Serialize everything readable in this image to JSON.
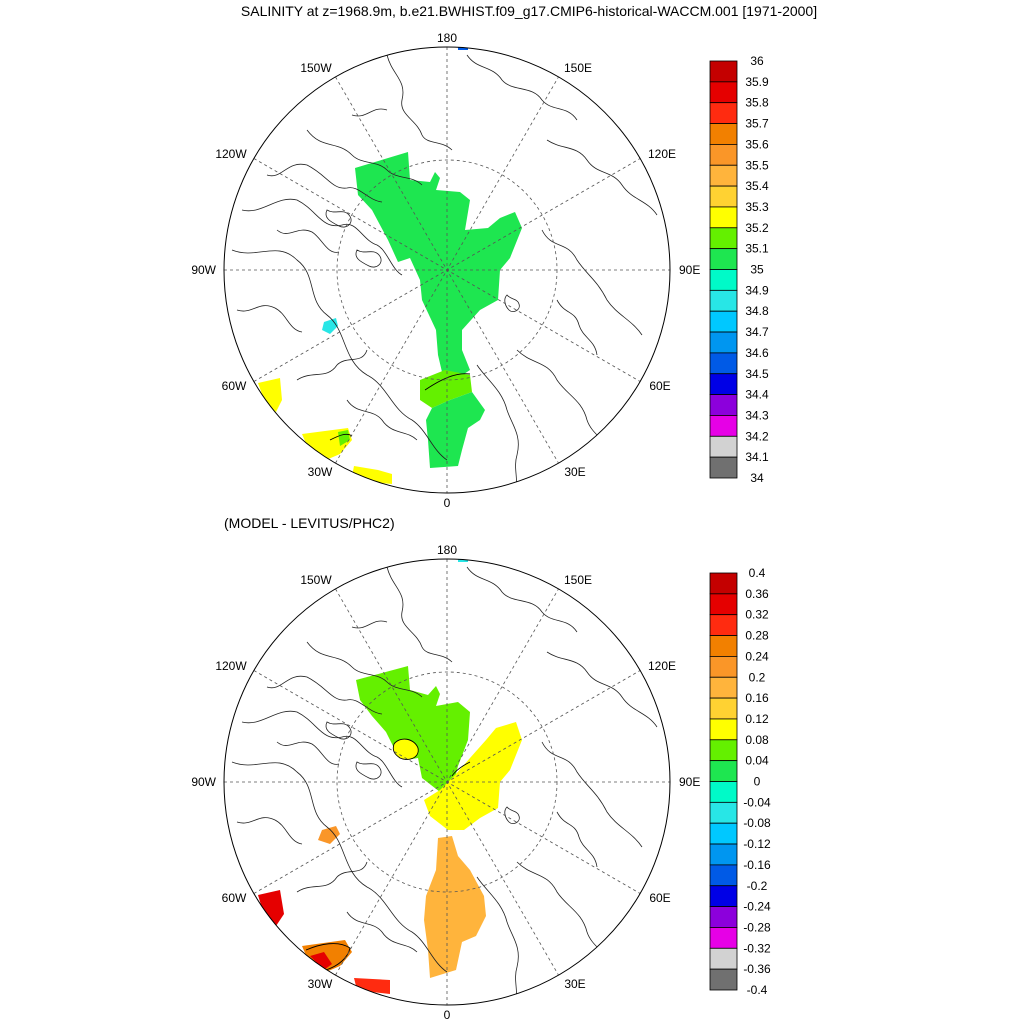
{
  "figure": {
    "title": "SALINITY at z=1968.9m, b.e21.BWHIST.f09_g17.CMIP6-historical-WACCM.001 [1971-2000]"
  },
  "panels": [
    {
      "id": "salinity",
      "subtitle": "",
      "lon_labels": {
        "top": "180",
        "bottom": "0",
        "left": "90W",
        "right": "90E",
        "upper_left_1": "150W",
        "upper_left_2": "120W",
        "lower_left_1": "60W",
        "lower_left_2": "30W",
        "upper_right_1": "150E",
        "upper_right_2": "120E",
        "lower_right_1": "60E",
        "lower_right_2": "30E"
      },
      "colorbar": {
        "labels": [
          "36",
          "35.9",
          "35.8",
          "35.7",
          "35.6",
          "35.5",
          "35.4",
          "35.3",
          "35.2",
          "35.1",
          "35",
          "34.9",
          "34.8",
          "34.7",
          "34.6",
          "34.5",
          "34.4",
          "34.3",
          "34.2",
          "34.1",
          "34"
        ],
        "colors": [
          "#c40000",
          "#e50000",
          "#ff2b10",
          "#f28000",
          "#fa9628",
          "#ffb43c",
          "#ffd232",
          "#ffff00",
          "#64f000",
          "#1ee650",
          "#00fac8",
          "#28e6e6",
          "#00c8ff",
          "#0096f0",
          "#005ae6",
          "#0000e6",
          "#8c00dc",
          "#e600e6",
          "#d2d2d2",
          "#707070"
        ]
      },
      "fields": [
        {
          "name": "central-arctic-basin",
          "color": "#1ee650"
        },
        {
          "name": "strait-warm-patch",
          "color": "#64f000"
        },
        {
          "name": "small-cyan-patch",
          "color": "#28e6e6"
        },
        {
          "name": "yellow-patch-60w",
          "color": "#ffff00"
        },
        {
          "name": "yellow-patch-30w",
          "color": "#ffff00"
        },
        {
          "name": "green-inset-30w",
          "color": "#64f000"
        },
        {
          "name": "blue-patch-top",
          "color": "#005ae6"
        }
      ]
    },
    {
      "id": "difference",
      "subtitle": "(MODEL - LEVITUS/PHC2)",
      "lon_labels": {
        "top": "180",
        "bottom": "0",
        "left": "90W",
        "right": "90E",
        "upper_left_1": "150W",
        "upper_left_2": "120W",
        "lower_left_1": "60W",
        "lower_left_2": "30W",
        "upper_right_1": "150E",
        "upper_right_2": "120E",
        "lower_right_1": "60E",
        "lower_right_2": "30E"
      },
      "colorbar": {
        "labels": [
          "0.4",
          "0.36",
          "0.32",
          "0.28",
          "0.24",
          "0.2",
          "0.16",
          "0.12",
          "0.08",
          "0.04",
          "0",
          "-0.04",
          "-0.08",
          "-0.12",
          "-0.16",
          "-0.2",
          "-0.24",
          "-0.28",
          "-0.32",
          "-0.36",
          "-0.4"
        ],
        "colors": [
          "#c40000",
          "#e50000",
          "#ff2b10",
          "#f28000",
          "#fa9628",
          "#ffb43c",
          "#ffd232",
          "#ffff00",
          "#64f000",
          "#1ee650",
          "#00fac8",
          "#28e6e6",
          "#00c8ff",
          "#0096f0",
          "#005ae6",
          "#0000e6",
          "#8c00dc",
          "#e600e6",
          "#d2d2d2",
          "#707070"
        ]
      },
      "fields": [
        {
          "name": "canada-basin-anomaly",
          "color": "#64f000"
        },
        {
          "name": "eurasian-basin-anomaly",
          "color": "#ffff00"
        },
        {
          "name": "nordic-seas-anomaly",
          "color": "#ffb43c"
        },
        {
          "name": "yellow-inset",
          "color": "#ffff00"
        },
        {
          "name": "orange-patch-small",
          "color": "#fa9628"
        },
        {
          "name": "red-patch-60w",
          "color": "#e50000"
        },
        {
          "name": "orange-patch-30w",
          "color": "#f28000"
        },
        {
          "name": "red-inset-30w",
          "color": "#e50000"
        },
        {
          "name": "red-patch-bottom",
          "color": "#ff2b10"
        },
        {
          "name": "cyan-patch-top",
          "color": "#28e6e6"
        }
      ]
    }
  ]
}
